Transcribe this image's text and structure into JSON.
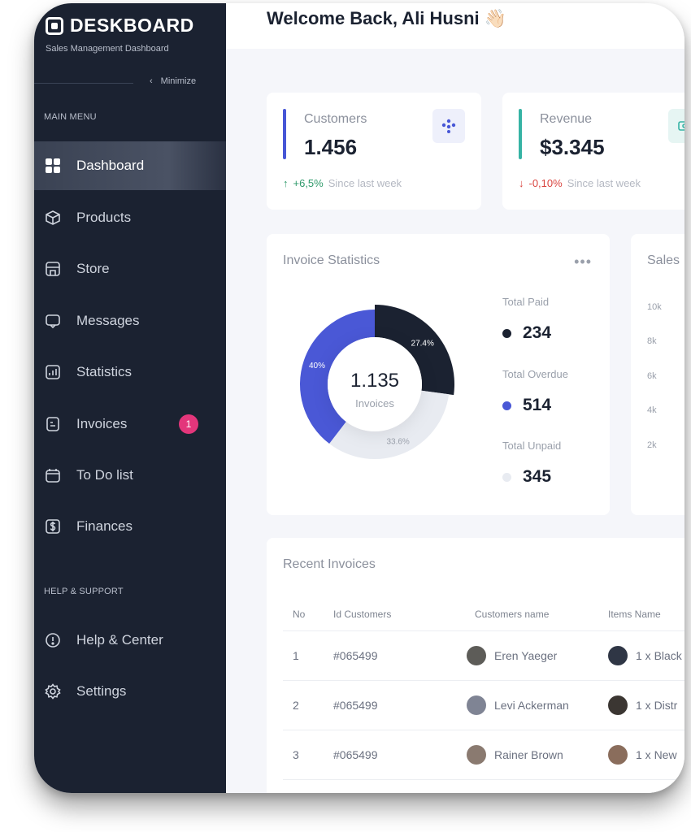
{
  "sidebar": {
    "brand_title": "DESKBOARD",
    "brand_subtitle": "Sales Management Dashboard",
    "minimize_label": "Minimize",
    "main_menu_label": "MAIN MENU",
    "items": [
      {
        "label": "Dashboard",
        "icon": "grid-icon",
        "active": true
      },
      {
        "label": "Products",
        "icon": "box-icon"
      },
      {
        "label": "Store",
        "icon": "store-icon"
      },
      {
        "label": "Messages",
        "icon": "message-icon"
      },
      {
        "label": "Statistics",
        "icon": "chart-icon"
      },
      {
        "label": "Invoices",
        "icon": "invoice-icon",
        "badge": "1"
      },
      {
        "label": "To Do list",
        "icon": "calendar-icon"
      },
      {
        "label": "Finances",
        "icon": "dollar-icon"
      }
    ],
    "help_label": "HELP & SUPPORT",
    "help_items": [
      {
        "label": "Help & Center",
        "icon": "info-icon"
      },
      {
        "label": "Settings",
        "icon": "settings-icon"
      }
    ]
  },
  "header": {
    "welcome": "Welcome Back, Ali Husni",
    "wave_emoji": "👋🏻"
  },
  "stats": [
    {
      "label": "Customers",
      "value": "1.456",
      "change": "+6,5%",
      "change_note": "Since last week",
      "direction": "up",
      "color": "#4756d6"
    },
    {
      "label": "Revenue",
      "value": "$3.345",
      "change": "-0,10%",
      "change_note": "Since last week",
      "direction": "down",
      "color": "#36b3a4"
    }
  ],
  "invoice_stats": {
    "title": "Invoice Statistics",
    "more": "•••",
    "center_value": "1.135",
    "center_label": "Invoices",
    "segments": [
      {
        "label": "27.4%",
        "value": 27.4,
        "color": "#1b2231"
      },
      {
        "label": "33.6%",
        "value": 33.6,
        "color": "#e8ebf1"
      },
      {
        "label": "40%",
        "value": 40,
        "color": "#4a58d6"
      }
    ],
    "legend": [
      {
        "label": "Total Paid",
        "value": "234",
        "color": "#1b2231"
      },
      {
        "label": "Total Overdue",
        "value": "514",
        "color": "#4a58d6"
      },
      {
        "label": "Total Unpaid",
        "value": "345",
        "color": "#e8ebf1"
      }
    ]
  },
  "sales_card": {
    "title": "Sales",
    "y_ticks": [
      "10k",
      "8k",
      "6k",
      "4k",
      "2k"
    ]
  },
  "recent_invoices": {
    "title": "Recent Invoices",
    "columns": [
      "No",
      "Id Customers",
      "Customers name",
      "Items Name"
    ],
    "rows": [
      {
        "no": "1",
        "id": "#065499",
        "name": "Eren Yaeger",
        "item": "1 x Black"
      },
      {
        "no": "2",
        "id": "#065499",
        "name": "Levi Ackerman",
        "item": "1 x Distr"
      },
      {
        "no": "3",
        "id": "#065499",
        "name": "Rainer Brown",
        "item": "1 x New"
      }
    ]
  }
}
